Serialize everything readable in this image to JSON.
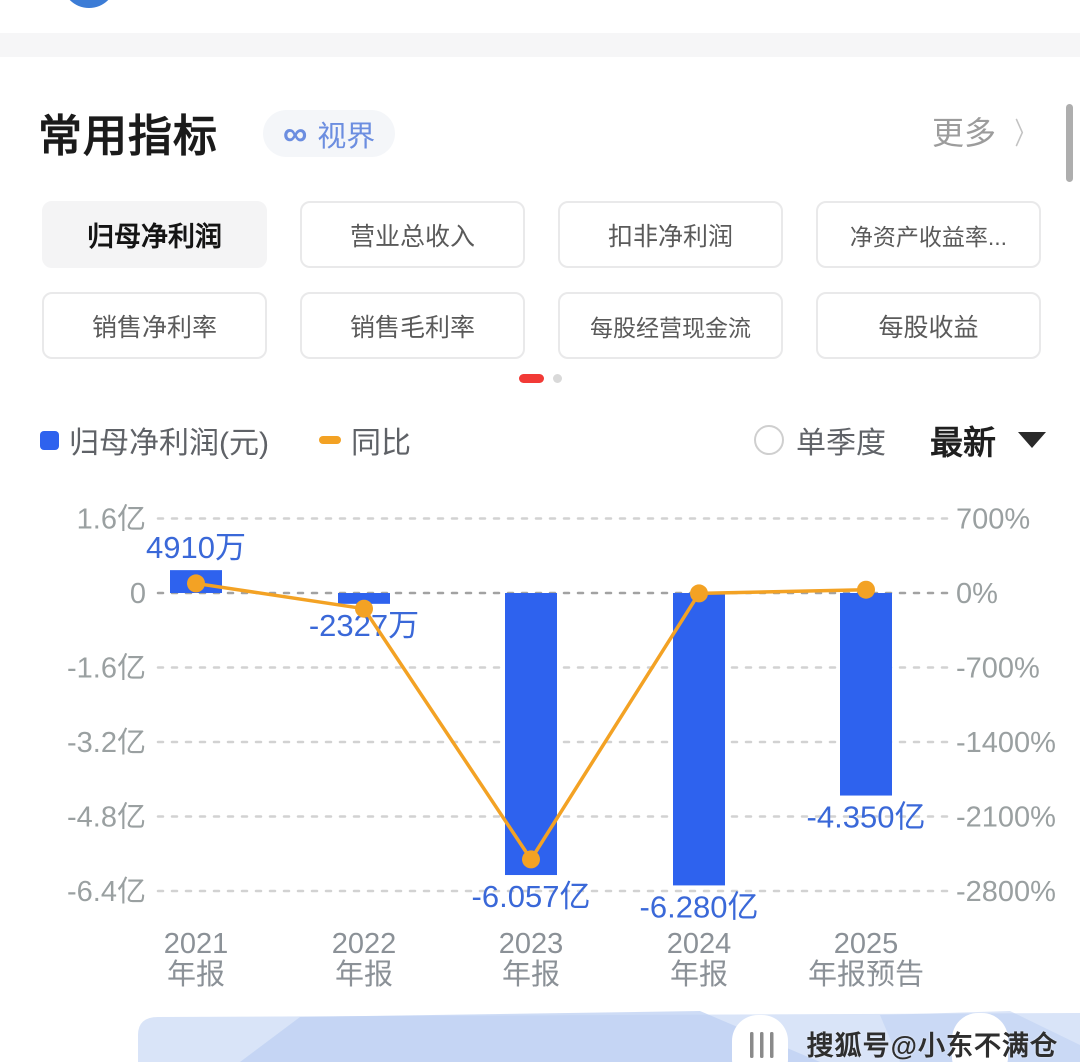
{
  "section": {
    "title": "常用指标",
    "badge": {
      "icon": "∞",
      "label": "视界"
    },
    "more_label": "更多",
    "chevron": "〉"
  },
  "tabs": {
    "selected_index": 0,
    "items": [
      "归母净利润",
      "营业总收入",
      "扣非净利润",
      "净资产收益率...",
      "销售净利率",
      "销售毛利率",
      "每股经营现金流",
      "每股收益"
    ]
  },
  "pagination": {
    "active_index": 0,
    "count": 2
  },
  "legend": {
    "bar_label": "归母净利润(元)",
    "line_label": "同比",
    "radio_label": "单季度",
    "latest_label": "最新"
  },
  "chart_data": {
    "type": "bar",
    "subtype": "bar-line-combo",
    "categories": [
      "2021 年报",
      "2022 年报",
      "2023 年报",
      "2024 年报",
      "2025 年报预告"
    ],
    "category_lines": [
      [
        "2021",
        "年报"
      ],
      [
        "2022",
        "年报"
      ],
      [
        "2023",
        "年报"
      ],
      [
        "2024",
        "年报"
      ],
      [
        "2025",
        "年报预告"
      ]
    ],
    "series": [
      {
        "name": "归母净利润(元)",
        "type": "bar",
        "color": "#2e62ee",
        "values_yi": [
          0.491,
          -0.2327,
          -6.057,
          -6.28,
          -4.35
        ],
        "point_labels": [
          "4910万",
          "-2327万",
          "-6.057亿",
          "-6.280亿",
          "-4.350亿"
        ]
      },
      {
        "name": "同比",
        "type": "line",
        "color": "#f3a224",
        "values_pct": [
          90,
          -147.4,
          -2503,
          -3.7,
          30.7
        ]
      }
    ],
    "left_axis": {
      "ticks": [
        "1.6亿",
        "0",
        "-1.6亿",
        "-3.2亿",
        "-4.8亿",
        "-6.4亿"
      ],
      "max_yi": 1.6,
      "min_yi": -6.4
    },
    "right_axis": {
      "ticks": [
        "700%",
        "0%",
        "-700%",
        "-1400%",
        "-2100%",
        "-2800%"
      ],
      "max_pct": 700,
      "min_pct": -2800
    },
    "grid": "horizontal-dashed",
    "legend_position": "top-left",
    "value_label_color": "#3a68d8"
  },
  "footer": {
    "watermark": "搜狐号@小东不满仓"
  },
  "colors": {
    "bar_blue": "#2e62ee",
    "line_orange": "#f3a224",
    "value_blue": "#3a68d8",
    "active_dot_red": "#f23a36",
    "axis_gray": "#9aa0a1",
    "xlabel_gray": "#8b9197",
    "grid_gray": "#d2d2d2",
    "zero_line_gray": "#a2a2a2",
    "banner_blue": "#d9e4f8",
    "banner_blue_dark": "#bed0f3"
  }
}
